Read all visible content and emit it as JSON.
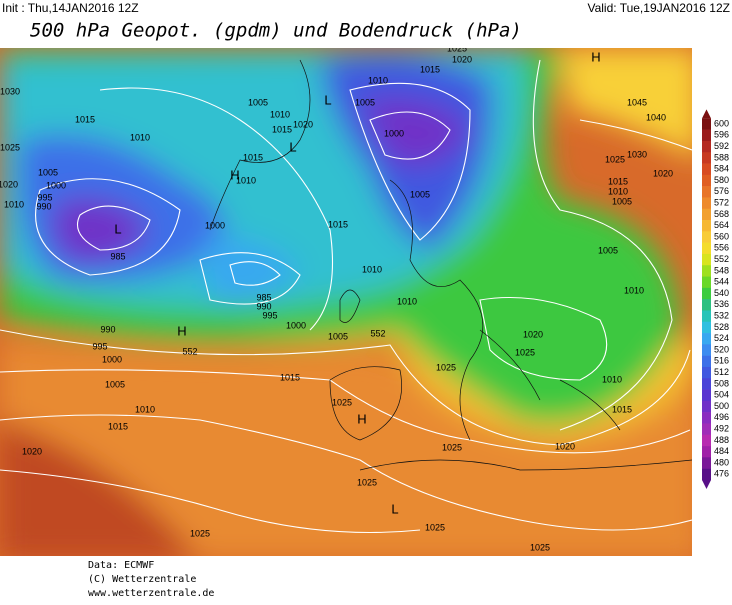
{
  "header": {
    "init": "Init : Thu,14JAN2016 12Z",
    "valid": "Valid: Tue,19JAN2016 12Z",
    "title": "500 hPa Geopot. (gpdm) und Bodendruck (hPa)"
  },
  "map": {
    "labels": [
      "1015",
      "1010",
      "1005",
      "1000",
      "995",
      "990",
      "L",
      "985",
      "1010",
      "1025",
      "1030",
      "1020",
      "990",
      "995",
      "1000",
      "H",
      "552",
      "1005",
      "1010",
      "1015",
      "1020",
      "1000",
      "985",
      "990",
      "995",
      "1000",
      "1005",
      "552",
      "1015",
      "1025",
      "H",
      "1025",
      "1025",
      "1025",
      "1025",
      "1025",
      "L",
      "1005",
      "1010",
      "1015",
      "1020",
      "L",
      "1015",
      "H",
      "1010",
      "1015",
      "1010",
      "1010",
      "1005",
      "L",
      "1010",
      "1015",
      "1020",
      "1025",
      "1000",
      "1005",
      "H",
      "1045",
      "1040",
      "1030",
      "1025",
      "1020",
      "1015",
      "1010",
      "1005",
      "1005",
      "1010",
      "1020",
      "1025",
      "1010",
      "1015",
      "1020",
      "1025"
    ]
  },
  "colorbar": {
    "ticks": [
      600,
      596,
      592,
      588,
      584,
      580,
      576,
      572,
      568,
      564,
      560,
      556,
      552,
      548,
      544,
      540,
      536,
      532,
      528,
      524,
      520,
      516,
      512,
      508,
      504,
      500,
      496,
      492,
      488,
      484,
      480,
      476
    ],
    "colors": [
      "#7a1010",
      "#9a1c1c",
      "#b52a22",
      "#c83a22",
      "#d84c22",
      "#e05e22",
      "#e87428",
      "#ee8a2c",
      "#f2a030",
      "#f6b834",
      "#f8cc38",
      "#f4dc2c",
      "#d8e420",
      "#9ee020",
      "#6ad828",
      "#3ccc40",
      "#2cc080",
      "#28c4b8",
      "#30c0e0",
      "#38a8f0",
      "#3c8cf0",
      "#3c70e8",
      "#4058e0",
      "#4a44d8",
      "#5a34d0",
      "#7030c8",
      "#8a2cc0",
      "#a02cb8",
      "#b82ab0",
      "#a020a8",
      "#7a1898",
      "#581088"
    ]
  },
  "footer": {
    "source": "Data: ECMWF",
    "copyright": "(C) Wetterzentrale",
    "url": "www.wetterzentrale.de"
  }
}
